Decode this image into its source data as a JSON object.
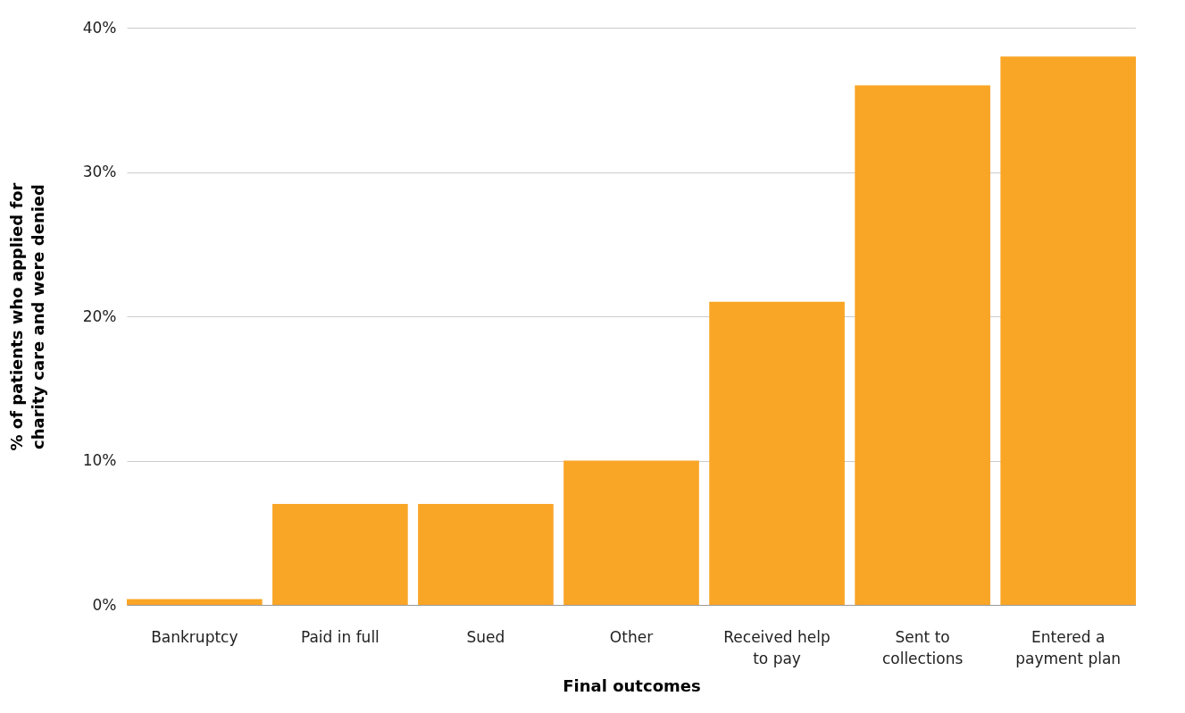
{
  "chart_data": {
    "type": "bar",
    "xlabel": "Final outcomes",
    "ylabel": "% of patients who applied for charity care and were denied",
    "categories": [
      "Bankruptcy",
      "Paid in full",
      "Sued",
      "Other",
      "Received help to pay",
      "Sent to collections",
      "Entered a payment plan"
    ],
    "values": [
      0.4,
      7,
      7,
      10,
      21,
      36,
      38
    ],
    "color": "#f9a526",
    "ylim": [
      0,
      40
    ],
    "yticks": [
      {
        "value": 0,
        "label": "0%"
      },
      {
        "value": 10,
        "label": "10%"
      },
      {
        "value": 20,
        "label": "20%"
      },
      {
        "value": 30,
        "label": "30%"
      },
      {
        "value": 40,
        "label": "40%"
      }
    ],
    "grid": "y"
  }
}
